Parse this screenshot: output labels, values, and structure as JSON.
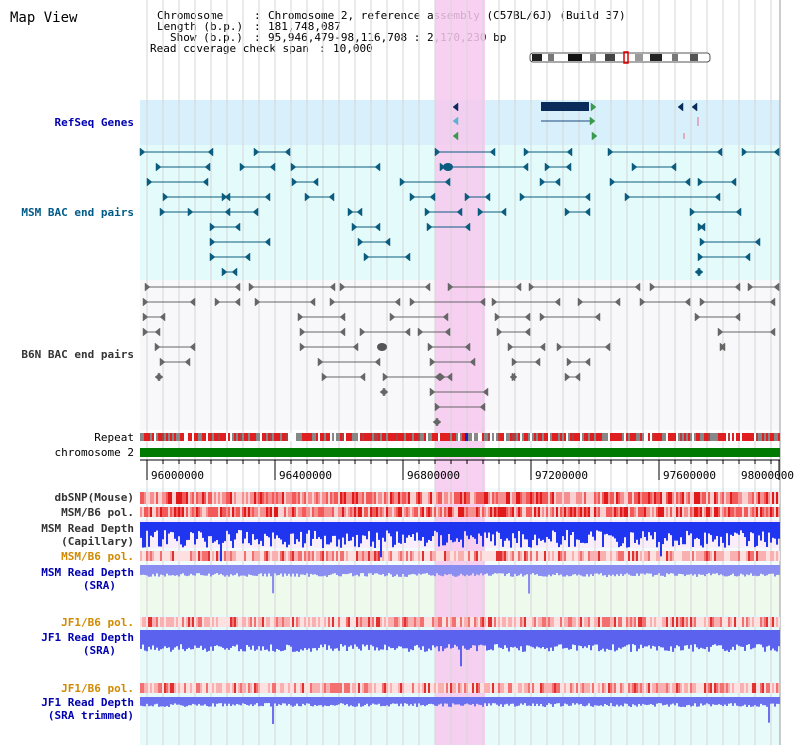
{
  "page": {
    "title": "Map View"
  },
  "info": {
    "chromosome_label": "Chromosome",
    "chromosome_value": "Chromosome 2, reference assembly (C57BL/6J) (Build 37)",
    "length_label": "Length (b.p.)",
    "length_value": "181,748,087",
    "show_label": "Show (b.p.)",
    "show_value": "95,946,479-98,116,708 : 2,170,230 bp",
    "span_label": "Read coverage check span",
    "span_value": "10,000"
  },
  "tracks": {
    "refseq": "RefSeq Genes",
    "msm_bac": "MSM BAC end pairs",
    "b6n_bac": "B6N BAC end pairs",
    "repeat": "Repeat",
    "chromosome": "chromosome 2",
    "dbsnp": "dbSNP(Mouse)",
    "msm_b6_pol": "MSM/B6 pol.",
    "msm_read_depth_cap_1": "MSM Read Depth",
    "msm_read_depth_cap_2": "(Capillary)",
    "msm_b6_pol_2": "MSM/B6 pol.",
    "msm_read_depth_sra_1": "MSM Read Depth",
    "msm_read_depth_sra_2": "(SRA)",
    "jf1_b6_pol": "JF1/B6 pol.",
    "jf1_read_depth_1": "JF1 Read Depth",
    "jf1_read_depth_2": "(SRA)",
    "jf1_b6_pol_2": "JF1/B6 pol.",
    "jf1_trimmed_1": "JF1 Read Depth",
    "jf1_trimmed_2": "(SRA trimmed)"
  },
  "axis": {
    "ticks": [
      "96000000",
      "96400000",
      "96800000",
      "97200000",
      "97600000",
      "98000000"
    ]
  },
  "colors": {
    "highlight": "#f7c8ee",
    "refseq_bg": "#d8f0fb",
    "msm_bg": "#e4fbfb",
    "b6n_bg": "#f8f8fb",
    "chromosome": "#007a00",
    "depth_blue": "#1f35f0",
    "depth_light": "#8a8ef0",
    "snp_red": "#f04040"
  }
}
